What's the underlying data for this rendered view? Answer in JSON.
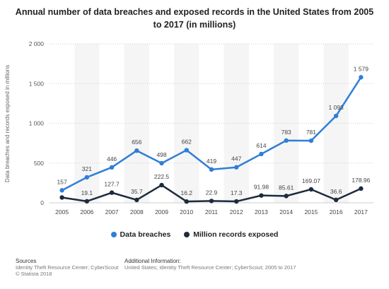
{
  "chart_data": {
    "type": "line",
    "title": "Annual number of data breaches and exposed records in the United States from 2005 to 2017 (in millions)",
    "ylabel": "Data breaches and records exposed in millions",
    "xlabel": "",
    "categories": [
      "2005",
      "2006",
      "2007",
      "2008",
      "2009",
      "2010",
      "2011",
      "2012",
      "2013",
      "2014",
      "2015",
      "2016",
      "2017"
    ],
    "yticks": [
      "0",
      "500",
      "1 000",
      "1 500",
      "2 000"
    ],
    "ylim": [
      0,
      2000
    ],
    "grid": "horizontal dotted",
    "legend_position": "bottom",
    "series": [
      {
        "name": "Data breaches",
        "color": "#2f7ed8",
        "values": [
          157,
          321,
          446,
          656,
          498,
          662,
          419,
          447,
          614,
          783,
          781,
          1093,
          1579
        ],
        "labels": [
          "157",
          "321",
          "446",
          "656",
          "498",
          "662",
          "419",
          "447",
          "614",
          "783",
          "781",
          "1 093",
          "1 579"
        ]
      },
      {
        "name": "Million records exposed",
        "color": "#1c2b3e",
        "values": [
          66.9,
          19.1,
          127.7,
          35.7,
          222.5,
          16.2,
          22.9,
          17.3,
          91.98,
          85.61,
          169.07,
          36.6,
          178.96
        ],
        "labels": [
          "",
          "19.1",
          "127.7",
          "35.7",
          "222.5",
          "16.2",
          "22.9",
          "17.3",
          "91.98",
          "85.61",
          "169.07",
          "36.6",
          "178.96"
        ]
      }
    ]
  },
  "footer": {
    "sources_heading": "Sources",
    "sources_line1": "Identity Theft Resource Center; CyberScout",
    "sources_line2": "© Statista 2018",
    "info_heading": "Additional Information:",
    "info_line1": "United States; Identity Theft Resource Center; CyberScout; 2005 to 2017"
  }
}
